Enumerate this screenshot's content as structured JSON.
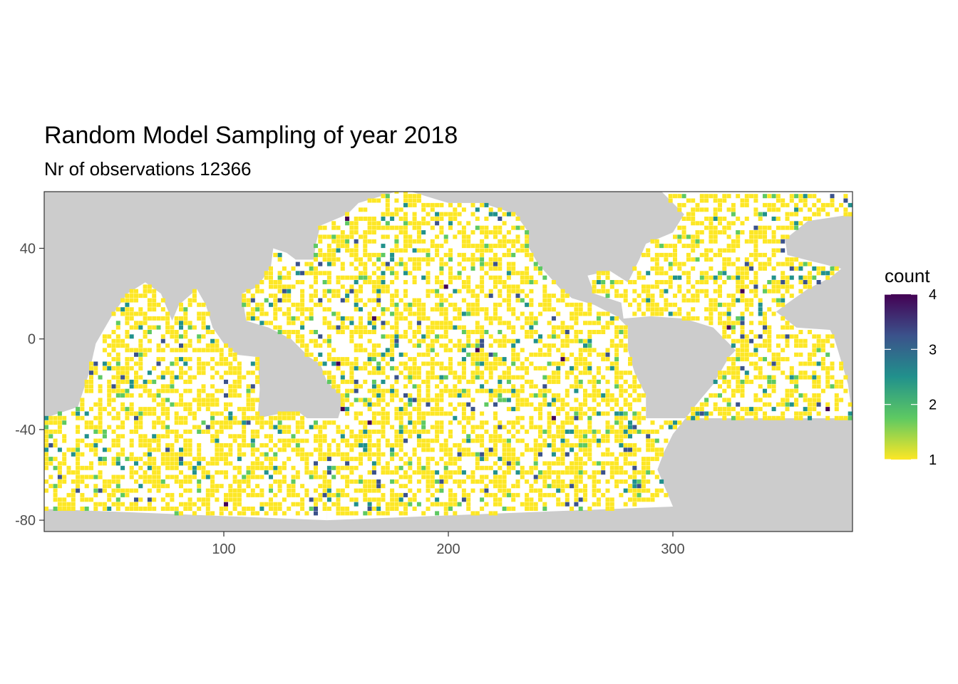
{
  "chart_data": {
    "type": "heatmap",
    "title": "Random Model Sampling of year 2018",
    "subtitle": "Nr of observations 12366",
    "xlabel": "",
    "ylabel": "",
    "xlim": [
      20,
      380
    ],
    "ylim": [
      -85,
      65
    ],
    "x_ticks": [
      100,
      200,
      300
    ],
    "y_ticks": [
      -80,
      -40,
      0,
      40
    ],
    "x_tick_labels": [
      "100",
      "200",
      "300"
    ],
    "y_tick_labels": [
      "-80",
      "-40",
      "0",
      "40"
    ],
    "grid": false,
    "panel_background": "#cccccc",
    "ocean_color": "#ffffff",
    "land_color": "#cccccc",
    "cell_size_degrees": 2,
    "legend": {
      "title": "count",
      "position": "right",
      "min": 1,
      "max": 4,
      "ticks": [
        1,
        2,
        3,
        4
      ],
      "tick_labels": [
        "1",
        "2",
        "3",
        "4"
      ],
      "colors": [
        "#fde725",
        "#5ec962",
        "#21918c",
        "#3b528b",
        "#440154"
      ]
    },
    "count_distribution_approx": {
      "1": 0.86,
      "2": 0.11,
      "3": 0.025,
      "4": 0.005
    }
  }
}
